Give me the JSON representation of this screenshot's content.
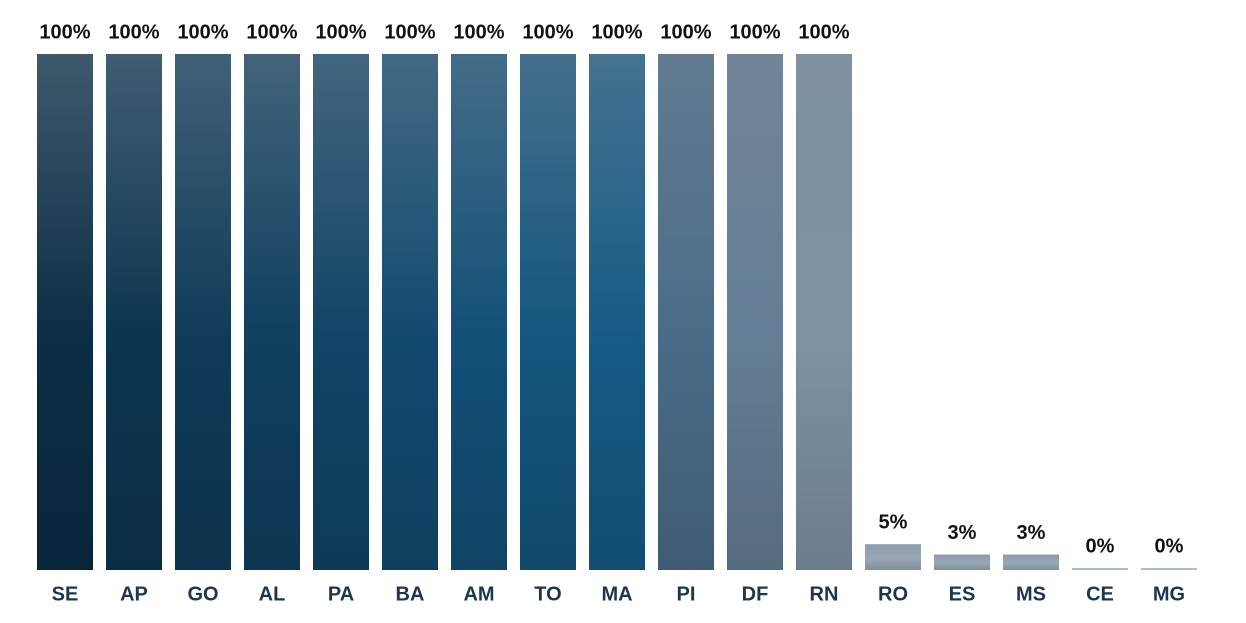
{
  "chart_data": {
    "type": "bar",
    "categories": [
      "SE",
      "AP",
      "GO",
      "AL",
      "PA",
      "BA",
      "AM",
      "TO",
      "MA",
      "PI",
      "DF",
      "RN",
      "RO",
      "ES",
      "MS",
      "CE",
      "MG"
    ],
    "values": [
      100,
      100,
      100,
      100,
      100,
      100,
      100,
      100,
      100,
      100,
      100,
      100,
      5,
      3,
      3,
      0,
      0
    ],
    "value_labels": [
      "100%",
      "100%",
      "100%",
      "100%",
      "100%",
      "100%",
      "100%",
      "100%",
      "100%",
      "100%",
      "100%",
      "100%",
      "5%",
      "3%",
      "3%",
      "0%",
      "0%"
    ],
    "colors": [
      "#0b2d45",
      "#0d3550",
      "#0f3b59",
      "#103f60",
      "#114467",
      "#124a6f",
      "#135077",
      "#14567f",
      "#155b86",
      "#4a6c88",
      "#647e95",
      "#7e92a6",
      "#98a7b6",
      "#98a7b6",
      "#98a7b6",
      "#c0c8d0",
      "#c0c8d0"
    ],
    "ylim": [
      0,
      100
    ]
  }
}
